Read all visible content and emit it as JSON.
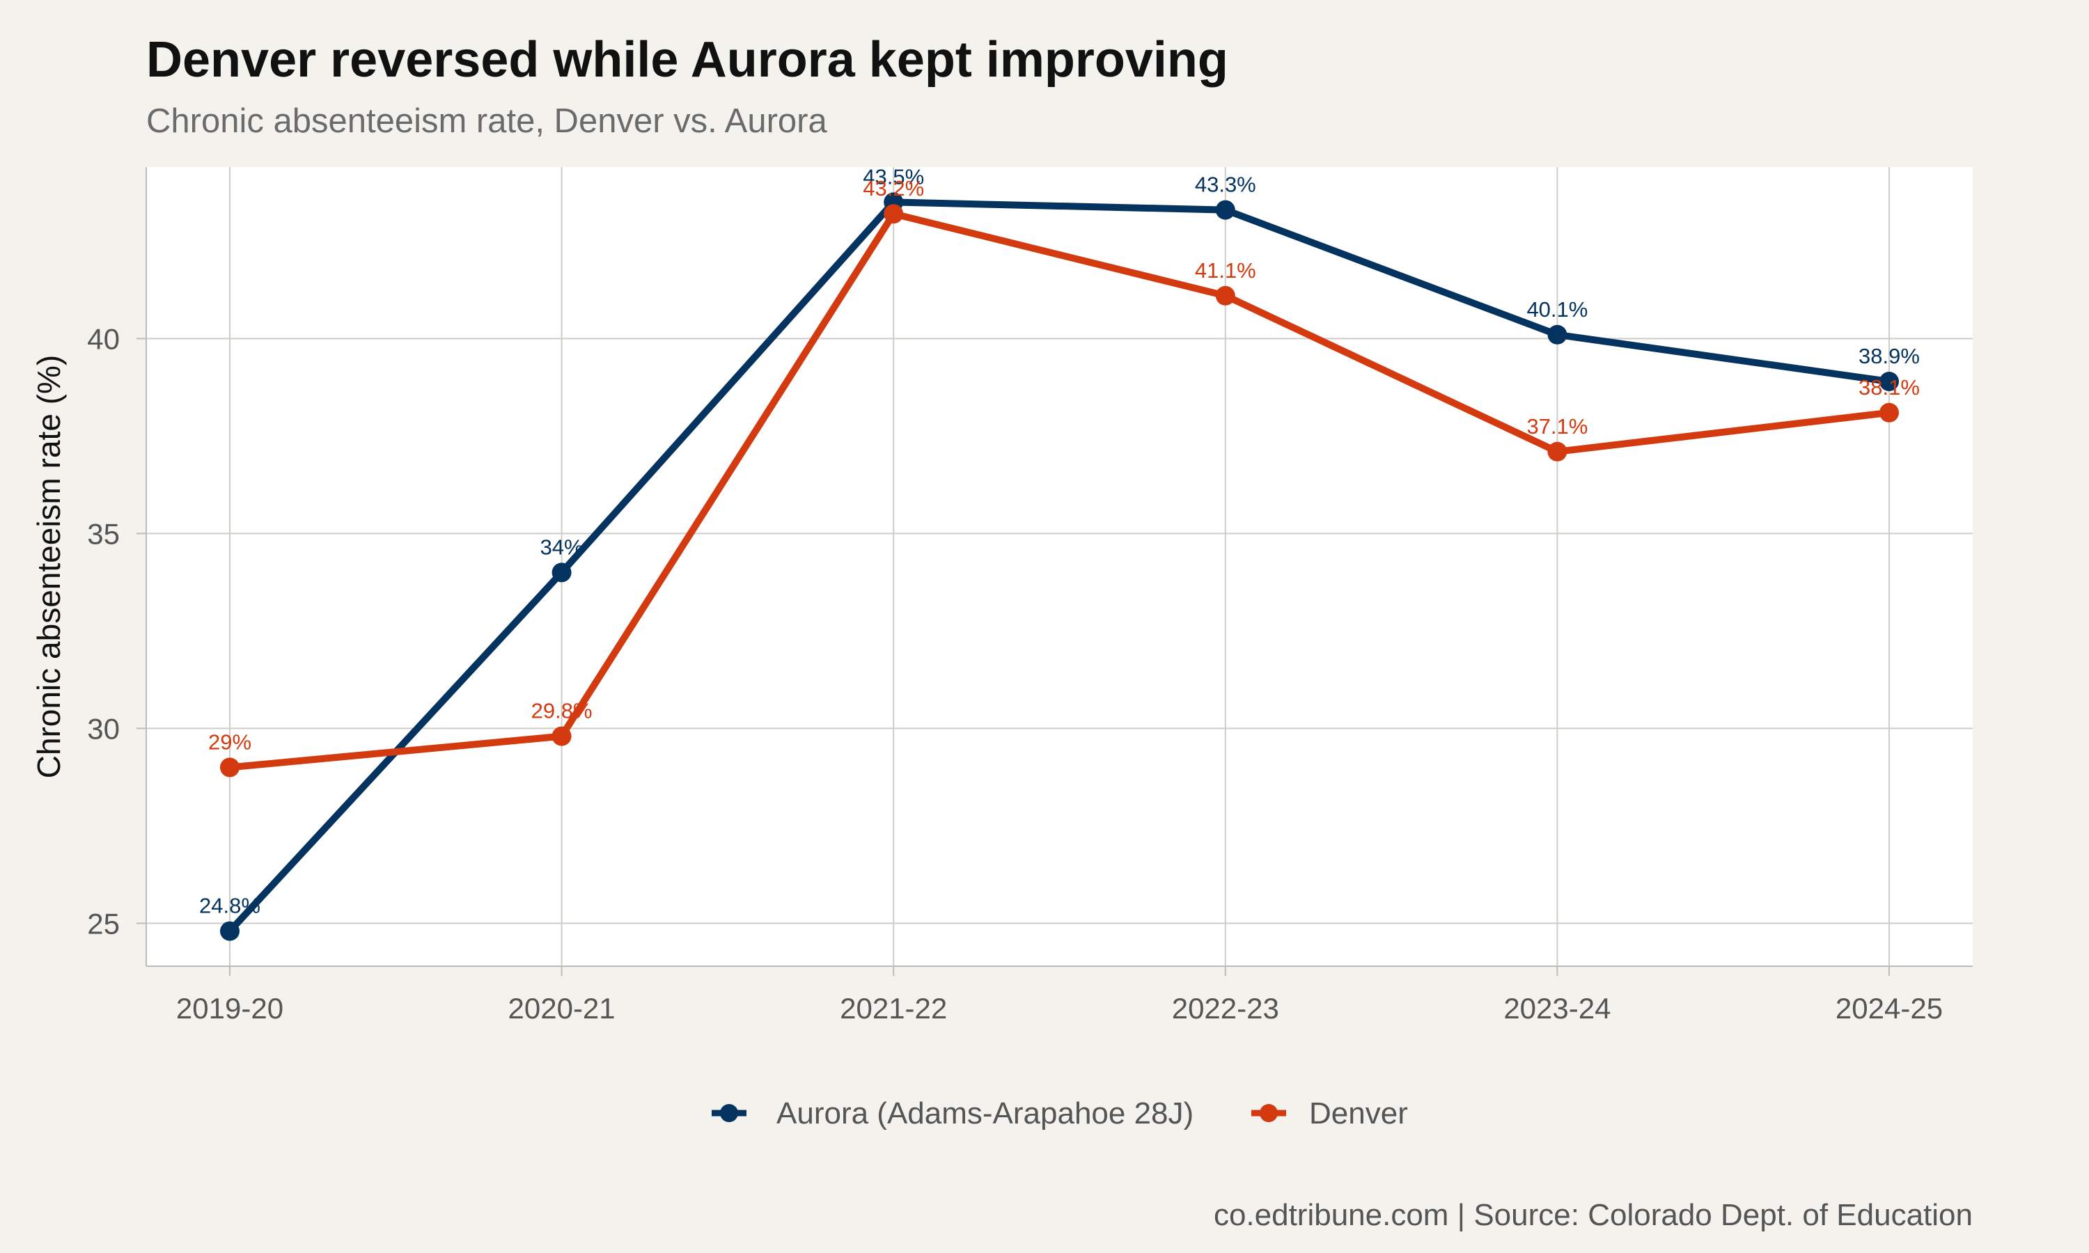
{
  "chart_data": {
    "type": "line",
    "title": "Denver reversed while Aurora kept improving",
    "subtitle": "Chronic absenteeism rate, Denver vs. Aurora",
    "xlabel": "",
    "ylabel": "Chronic absenteeism rate (%)",
    "categories": [
      "2019-20",
      "2020-21",
      "2021-22",
      "2022-23",
      "2023-24",
      "2024-25"
    ],
    "ylim": [
      23.9,
      44.4
    ],
    "yticks": [
      25,
      30,
      35,
      40
    ],
    "grid": true,
    "legend_position": "bottom",
    "series": [
      {
        "name": "Aurora (Adams-Arapahoe 28J)",
        "color": "#04335f",
        "values": [
          24.8,
          34.0,
          43.5,
          43.3,
          40.1,
          38.9
        ],
        "labels": [
          "24.8%",
          "34%",
          "43.5%",
          "43.3%",
          "40.1%",
          "38.9%"
        ]
      },
      {
        "name": "Denver",
        "color": "#d43a0f",
        "values": [
          29.0,
          29.8,
          43.2,
          41.1,
          37.1,
          38.1
        ],
        "labels": [
          "29%",
          "29.8%",
          "43.2%",
          "41.1%",
          "37.1%",
          "38.1%"
        ]
      }
    ],
    "caption": "co.edtribune.com | Source: Colorado Dept. of Education"
  }
}
